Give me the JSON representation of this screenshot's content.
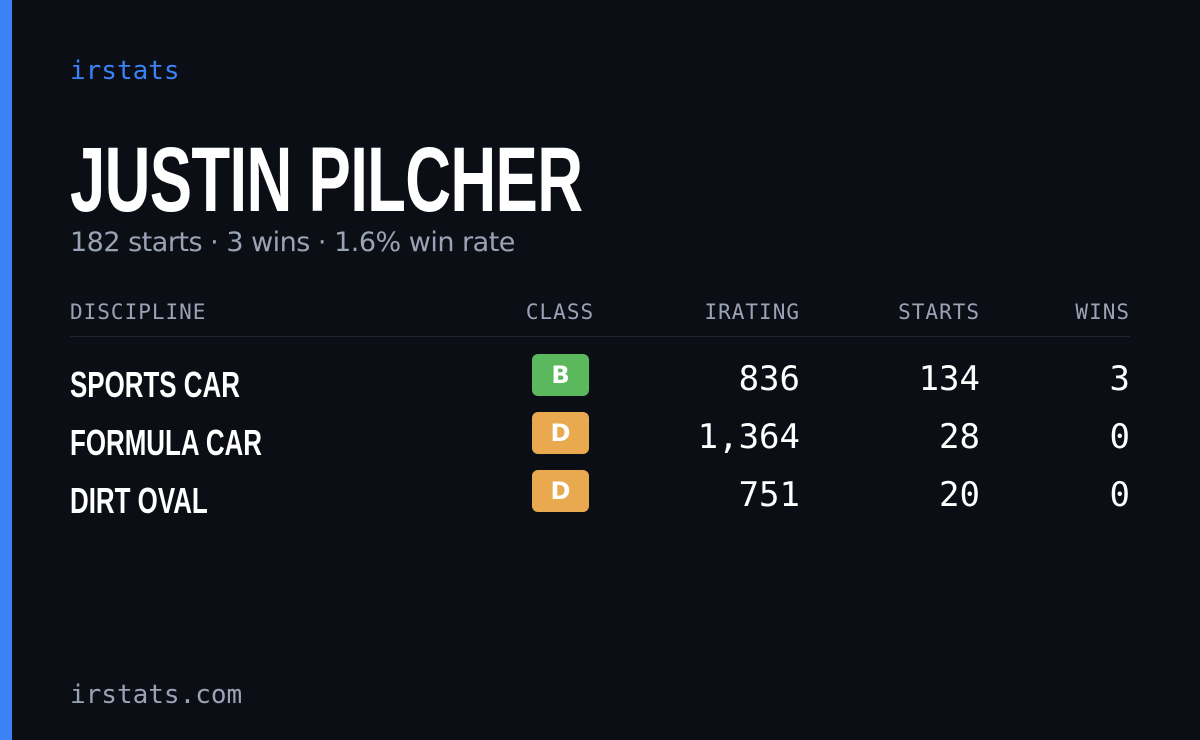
{
  "brand": "irstats",
  "driver": {
    "name": "JUSTIN PILCHER",
    "summary": "182 starts · 3 wins · 1.6% win rate"
  },
  "table": {
    "headers": [
      "DISCIPLINE",
      "CLASS",
      "IRATING",
      "STARTS",
      "WINS"
    ],
    "rows": [
      {
        "discipline": "SPORTS CAR",
        "class": "B",
        "class_color": "#5cb85c",
        "irating": "836",
        "starts": "134",
        "wins": "3"
      },
      {
        "discipline": "FORMULA CAR",
        "class": "D",
        "class_color": "#e8a94f",
        "irating": "1,364",
        "starts": "28",
        "wins": "0"
      },
      {
        "discipline": "DIRT OVAL",
        "class": "D",
        "class_color": "#e8a94f",
        "irating": "751",
        "starts": "20",
        "wins": "0"
      }
    ]
  },
  "footer": "irstats.com"
}
